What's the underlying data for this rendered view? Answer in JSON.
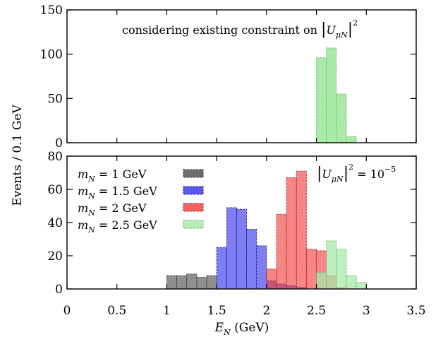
{
  "chart_data": {
    "type": "bar",
    "ylabel": "Events / 0.1 GeV",
    "xlabel": "E_N (GeV)",
    "xlabel_parts": {
      "symbol": "E",
      "subscript": "N",
      "unit": "(GeV)"
    },
    "xlim": [
      0,
      3.5
    ],
    "x_ticks": [
      "0",
      "0.5",
      "1",
      "1.5",
      "2",
      "2.5",
      "3",
      "3.5"
    ],
    "bin_width": 0.1,
    "series_meta": [
      {
        "key": "m1",
        "legend": {
          "prefix": "m",
          "sub": "N",
          "suffix": " = 1 GeV"
        },
        "color": "#4a4a4a"
      },
      {
        "key": "m1_5",
        "legend": {
          "prefix": "m",
          "sub": "N",
          "suffix": " = 1.5 GeV"
        },
        "color": "#2f2fe6"
      },
      {
        "key": "m2",
        "legend": {
          "prefix": "m",
          "sub": "N",
          "suffix": " = 2 GeV"
        },
        "color": "#f03a3a"
      },
      {
        "key": "m2_5",
        "legend": {
          "prefix": "m",
          "sub": "N",
          "suffix": " = 2.5 GeV"
        },
        "color": "#a8eaa8"
      }
    ],
    "panels": [
      {
        "name": "top",
        "ylim": [
          0,
          150
        ],
        "y_ticks": [
          "0",
          "50",
          "100",
          "150"
        ],
        "annotation": {
          "text": "considering existing constraint on ",
          "U": "U",
          "sub": "μN",
          "exp": "2"
        },
        "series": [
          {
            "key": "m2_5",
            "bins": [
              [
                2.5,
                96
              ],
              [
                2.6,
                107
              ],
              [
                2.7,
                55
              ],
              [
                2.8,
                7
              ]
            ]
          }
        ]
      },
      {
        "name": "bottom",
        "ylim": [
          0,
          80
        ],
        "y_ticks": [
          "0",
          "20",
          "40",
          "60",
          "80"
        ],
        "annotation": {
          "U": "U",
          "sub": "μN",
          "exp": "2",
          "value": " = 10",
          "value_exp": "−5"
        },
        "series": [
          {
            "key": "m1",
            "bins": [
              [
                1.0,
                8
              ],
              [
                1.1,
                8
              ],
              [
                1.2,
                9
              ],
              [
                1.3,
                7
              ],
              [
                1.4,
                8
              ]
            ]
          },
          {
            "key": "m1_5",
            "bins": [
              [
                1.5,
                25
              ],
              [
                1.6,
                49
              ],
              [
                1.7,
                48
              ],
              [
                1.8,
                36
              ],
              [
                1.9,
                26
              ],
              [
                2.0,
                5
              ],
              [
                2.1,
                3
              ],
              [
                2.2,
                2
              ],
              [
                2.3,
                1
              ]
            ]
          },
          {
            "key": "m2",
            "bins": [
              [
                2.0,
                12
              ],
              [
                2.1,
                45
              ],
              [
                2.2,
                67
              ],
              [
                2.3,
                71
              ],
              [
                2.4,
                24
              ],
              [
                2.5,
                23
              ],
              [
                2.6,
                8
              ],
              [
                2.7,
                1
              ]
            ]
          },
          {
            "key": "m2_5",
            "bins": [
              [
                2.5,
                10
              ],
              [
                2.6,
                29
              ],
              [
                2.7,
                24
              ],
              [
                2.8,
                8
              ],
              [
                2.9,
                4
              ]
            ]
          }
        ]
      }
    ]
  }
}
